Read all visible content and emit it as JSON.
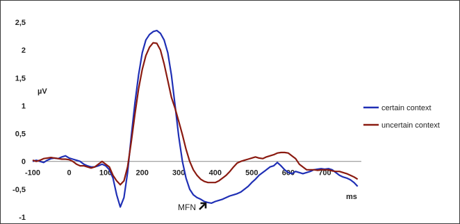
{
  "chart_data": {
    "type": "line",
    "xlabel": "ms",
    "ylabel": "µV",
    "xlim": [
      -100,
      800
    ],
    "ylim": [
      -1,
      2.5
    ],
    "x_ticks": [
      "-100",
      "0",
      "100",
      "200",
      "300",
      "400",
      "500",
      "600",
      "700"
    ],
    "y_ticks": [
      "2,5",
      "2",
      "1,5",
      "1",
      "0,5",
      "0",
      "-0,5",
      "-1"
    ],
    "annotation": "MFN",
    "legend_position": "right",
    "series": [
      {
        "name": "certain context",
        "color": "#1f2fb5",
        "x": [
          -100,
          -90,
          -80,
          -70,
          -60,
          -50,
          -40,
          -30,
          -20,
          -10,
          0,
          10,
          20,
          30,
          40,
          50,
          60,
          70,
          80,
          90,
          100,
          110,
          120,
          130,
          140,
          150,
          160,
          170,
          180,
          190,
          200,
          210,
          220,
          230,
          240,
          250,
          260,
          270,
          280,
          290,
          300,
          310,
          320,
          330,
          340,
          350,
          360,
          370,
          380,
          390,
          400,
          410,
          420,
          430,
          440,
          450,
          460,
          470,
          480,
          490,
          500,
          510,
          520,
          530,
          540,
          550,
          560,
          570,
          580,
          590,
          600,
          610,
          620,
          630,
          640,
          650,
          660,
          670,
          680,
          690,
          700,
          710,
          720,
          730,
          740,
          750,
          760,
          770,
          780,
          790
        ],
        "values": [
          0.0,
          0.02,
          0.0,
          -0.02,
          0.02,
          0.05,
          0.06,
          0.05,
          0.08,
          0.1,
          0.06,
          0.04,
          0.02,
          0.0,
          -0.05,
          -0.08,
          -0.1,
          -0.1,
          -0.08,
          -0.05,
          -0.08,
          -0.15,
          -0.3,
          -0.6,
          -0.82,
          -0.65,
          -0.2,
          0.45,
          1.05,
          1.55,
          1.95,
          2.18,
          2.28,
          2.33,
          2.35,
          2.3,
          2.18,
          1.95,
          1.55,
          1.0,
          0.45,
          0.0,
          -0.3,
          -0.5,
          -0.6,
          -0.65,
          -0.68,
          -0.72,
          -0.74,
          -0.75,
          -0.72,
          -0.7,
          -0.68,
          -0.65,
          -0.62,
          -0.6,
          -0.58,
          -0.55,
          -0.5,
          -0.45,
          -0.38,
          -0.32,
          -0.25,
          -0.2,
          -0.15,
          -0.1,
          -0.08,
          -0.02,
          -0.08,
          -0.15,
          -0.2,
          -0.22,
          -0.18,
          -0.2,
          -0.22,
          -0.2,
          -0.18,
          -0.15,
          -0.14,
          -0.13,
          -0.14,
          -0.13,
          -0.15,
          -0.2,
          -0.25,
          -0.28,
          -0.3,
          -0.33,
          -0.38,
          -0.45
        ]
      },
      {
        "name": "uncertain context",
        "color": "#8a1a10",
        "x": [
          -100,
          -90,
          -80,
          -70,
          -60,
          -50,
          -40,
          -30,
          -20,
          -10,
          0,
          10,
          20,
          30,
          40,
          50,
          60,
          70,
          80,
          90,
          100,
          110,
          120,
          130,
          140,
          150,
          160,
          170,
          180,
          190,
          200,
          210,
          220,
          230,
          240,
          250,
          260,
          270,
          280,
          290,
          300,
          310,
          320,
          330,
          340,
          350,
          360,
          370,
          380,
          390,
          400,
          410,
          420,
          430,
          440,
          450,
          460,
          470,
          480,
          490,
          500,
          510,
          520,
          530,
          540,
          550,
          560,
          570,
          580,
          590,
          600,
          610,
          620,
          630,
          640,
          650,
          660,
          670,
          680,
          690,
          700,
          710,
          720,
          730,
          740,
          750,
          760,
          770,
          780,
          790
        ],
        "values": [
          0.02,
          0.0,
          0.02,
          0.05,
          0.06,
          0.07,
          0.06,
          0.05,
          0.04,
          0.04,
          0.03,
          0.0,
          -0.05,
          -0.08,
          -0.08,
          -0.1,
          -0.12,
          -0.1,
          -0.05,
          0.0,
          -0.05,
          -0.1,
          -0.25,
          -0.35,
          -0.42,
          -0.35,
          -0.1,
          0.35,
          0.85,
          1.3,
          1.65,
          1.9,
          2.05,
          2.13,
          2.12,
          2.0,
          1.75,
          1.45,
          1.15,
          0.95,
          0.72,
          0.48,
          0.22,
          0.0,
          -0.15,
          -0.25,
          -0.32,
          -0.36,
          -0.38,
          -0.38,
          -0.38,
          -0.35,
          -0.3,
          -0.25,
          -0.18,
          -0.1,
          -0.03,
          0.0,
          0.02,
          0.04,
          0.06,
          0.08,
          0.06,
          0.05,
          0.08,
          0.1,
          0.12,
          0.15,
          0.16,
          0.16,
          0.15,
          0.1,
          0.05,
          -0.05,
          -0.1,
          -0.15,
          -0.15,
          -0.15,
          -0.16,
          -0.15,
          -0.15,
          -0.15,
          -0.17,
          -0.18,
          -0.18,
          -0.2,
          -0.22,
          -0.25,
          -0.28,
          -0.32
        ]
      }
    ]
  }
}
